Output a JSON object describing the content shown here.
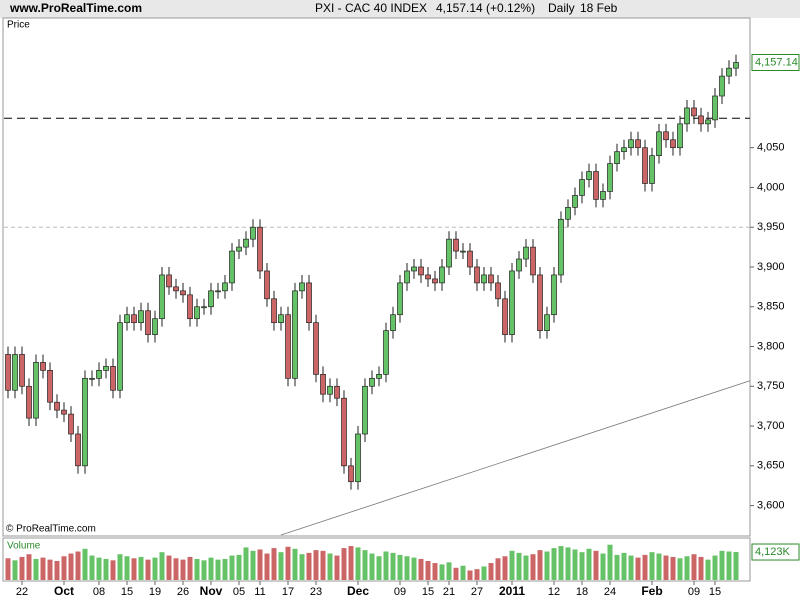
{
  "site": "www.ProRealTime.com",
  "copyright": "© ProRealTime.com",
  "chart_data": {
    "type": "candlestick",
    "title": "PXI - CAC 40 INDEX",
    "last_price_text": "4,157.14 (+0.12%)",
    "period": "Daily",
    "date": "18 Feb",
    "price_panel_label": "Price",
    "volume_panel_label": "Volume",
    "ylim": [
      3563,
      4198
    ],
    "yticks": [
      {
        "value": 3600,
        "label": "3,600"
      },
      {
        "value": 3650,
        "label": "3,650"
      },
      {
        "value": 3700,
        "label": "3,700"
      },
      {
        "value": 3750,
        "label": "3,750"
      },
      {
        "value": 3800,
        "label": "3,800"
      },
      {
        "value": 3850,
        "label": "3,850"
      },
      {
        "value": 3900,
        "label": "3,900"
      },
      {
        "value": 3950,
        "label": "3,950"
      },
      {
        "value": 4000,
        "label": "4,000"
      },
      {
        "value": 4050,
        "label": "4,050"
      }
    ],
    "last_price": {
      "value": 4157.14,
      "label": "4,157.14"
    },
    "hlines": [
      4087,
      3950
    ],
    "trendline": {
      "x": [
        39,
        106
      ],
      "y": [
        3563,
        3757
      ]
    },
    "up_color": "#66c266",
    "down_color": "#cc6666",
    "categories": [
      null,
      null,
      "22",
      null,
      null,
      null,
      null,
      null,
      "Oct",
      null,
      null,
      null,
      null,
      "08",
      null,
      null,
      null,
      "15",
      null,
      null,
      null,
      "19",
      null,
      null,
      null,
      "26",
      null,
      null,
      null,
      "Nov",
      null,
      null,
      null,
      "05",
      null,
      null,
      "11",
      null,
      null,
      null,
      "17",
      null,
      null,
      null,
      "23",
      null,
      null,
      null,
      null,
      null,
      "Dec",
      null,
      null,
      null,
      null,
      null,
      "09",
      null,
      null,
      null,
      "15",
      null,
      null,
      "21",
      null,
      null,
      null,
      "27",
      null,
      null,
      null,
      null,
      "2011",
      null,
      null,
      null,
      null,
      null,
      "12",
      null,
      null,
      null,
      "18",
      null,
      null,
      null,
      "24",
      null,
      null,
      null,
      null,
      null,
      "Feb",
      null,
      null,
      null,
      null,
      null,
      "09",
      null,
      null,
      "15",
      null,
      null,
      null
    ],
    "open": [
      3790,
      3745,
      3790,
      3750,
      3710,
      3780,
      3770,
      3730,
      3720,
      3715,
      3690,
      3650,
      3760,
      3760,
      3770,
      3775,
      3745,
      3830,
      3840,
      3830,
      3845,
      3815,
      3835,
      3890,
      3875,
      3870,
      3865,
      3835,
      3850,
      3850,
      3870,
      3870,
      3880,
      3920,
      3925,
      3935,
      3950,
      3895,
      3860,
      3830,
      3840,
      3760,
      3870,
      3880,
      3830,
      3765,
      3740,
      3750,
      3735,
      3650,
      3630,
      3690,
      3750,
      3760,
      3765,
      3820,
      3840,
      3880,
      3895,
      3900,
      3890,
      3885,
      3880,
      3900,
      3935,
      3920,
      3920,
      3900,
      3880,
      3890,
      3880,
      3860,
      3815,
      3895,
      3910,
      3925,
      3890,
      3820,
      3840,
      3890,
      3960,
      3975,
      3990,
      4010,
      4020,
      3985,
      3995,
      4030,
      4045,
      4050,
      4060,
      4050,
      4005,
      4040,
      4070,
      4060,
      4050,
      4080,
      4100,
      4090,
      4080,
      4085,
      4115,
      4140,
      4150
    ],
    "high": [
      3800,
      3800,
      3800,
      3760,
      3790,
      3790,
      3780,
      3740,
      3730,
      3725,
      3700,
      3770,
      3770,
      3780,
      3785,
      3785,
      3840,
      3850,
      3850,
      3855,
      3855,
      3845,
      3900,
      3900,
      3885,
      3880,
      3875,
      3860,
      3860,
      3880,
      3880,
      3890,
      3930,
      3935,
      3945,
      3960,
      3960,
      3905,
      3870,
      3850,
      3850,
      3880,
      3890,
      3890,
      3840,
      3775,
      3760,
      3760,
      3745,
      3660,
      3700,
      3760,
      3770,
      3775,
      3830,
      3850,
      3890,
      3905,
      3910,
      3910,
      3900,
      3895,
      3910,
      3945,
      3945,
      3930,
      3930,
      3910,
      3900,
      3900,
      3890,
      3870,
      3905,
      3920,
      3935,
      3935,
      3900,
      3850,
      3900,
      3970,
      3985,
      4000,
      4020,
      4030,
      4030,
      4005,
      4040,
      4055,
      4060,
      4070,
      4070,
      4060,
      4050,
      4080,
      4080,
      4070,
      4090,
      4110,
      4110,
      4100,
      4095,
      4125,
      4150,
      4160,
      4167
    ],
    "low": [
      3735,
      3735,
      3740,
      3700,
      3700,
      3760,
      3720,
      3710,
      3705,
      3680,
      3640,
      3640,
      3750,
      3750,
      3760,
      3735,
      3735,
      3820,
      3820,
      3820,
      3805,
      3805,
      3825,
      3865,
      3860,
      3855,
      3825,
      3825,
      3840,
      3840,
      3860,
      3860,
      3870,
      3910,
      3915,
      3925,
      3885,
      3850,
      3820,
      3820,
      3750,
      3750,
      3860,
      3820,
      3755,
      3730,
      3730,
      3725,
      3640,
      3620,
      3620,
      3680,
      3740,
      3750,
      3755,
      3810,
      3830,
      3870,
      3885,
      3880,
      3875,
      3870,
      3870,
      3890,
      3910,
      3910,
      3890,
      3870,
      3870,
      3870,
      3850,
      3805,
      3805,
      3885,
      3900,
      3880,
      3810,
      3810,
      3830,
      3880,
      3950,
      3965,
      3980,
      4000,
      3975,
      3975,
      3985,
      4020,
      4035,
      4040,
      4040,
      3995,
      3995,
      4030,
      4050,
      4040,
      4040,
      4070,
      4080,
      4070,
      4070,
      4075,
      4105,
      4130,
      4140
    ],
    "close": [
      3745,
      3790,
      3750,
      3710,
      3780,
      3770,
      3730,
      3720,
      3715,
      3690,
      3650,
      3760,
      3760,
      3770,
      3775,
      3745,
      3830,
      3840,
      3830,
      3845,
      3815,
      3835,
      3890,
      3875,
      3870,
      3865,
      3835,
      3850,
      3850,
      3870,
      3870,
      3880,
      3920,
      3925,
      3935,
      3950,
      3895,
      3860,
      3830,
      3840,
      3760,
      3870,
      3880,
      3830,
      3765,
      3740,
      3750,
      3735,
      3650,
      3630,
      3690,
      3750,
      3760,
      3765,
      3820,
      3840,
      3880,
      3895,
      3900,
      3890,
      3885,
      3880,
      3900,
      3935,
      3920,
      3920,
      3900,
      3880,
      3890,
      3880,
      3860,
      3815,
      3895,
      3910,
      3925,
      3890,
      3820,
      3840,
      3890,
      3960,
      3975,
      3990,
      4010,
      4020,
      3985,
      3995,
      4030,
      4045,
      4050,
      4060,
      4050,
      4005,
      4040,
      4070,
      4060,
      4050,
      4080,
      4100,
      4090,
      4080,
      4085,
      4115,
      4140,
      4150,
      4157.14
    ],
    "volume": [
      3200,
      2900,
      3400,
      3800,
      3100,
      3300,
      3000,
      2800,
      3500,
      3900,
      4200,
      4600,
      3600,
      3300,
      3100,
      2900,
      3800,
      3500,
      3200,
      3400,
      3000,
      3300,
      4100,
      3600,
      3200,
      3000,
      3400,
      3100,
      2900,
      3300,
      3000,
      3100,
      3600,
      3700,
      4800,
      4300,
      4500,
      3900,
      4700,
      4100,
      4900,
      4600,
      3800,
      4000,
      4400,
      4300,
      3900,
      3600,
      4700,
      5000,
      4800,
      4400,
      3900,
      3500,
      4200,
      4000,
      3700,
      3500,
      3300,
      3100,
      2800,
      2500,
      2300,
      2600,
      1800,
      2100,
      1400,
      1600,
      2000,
      2500,
      3200,
      3500,
      4300,
      4000,
      3600,
      3800,
      4400,
      4200,
      4700,
      5000,
      4800,
      4500,
      4100,
      4600,
      4300,
      3900,
      5200,
      3700,
      4000,
      3600,
      3300,
      3700,
      4100,
      3900,
      3600,
      3400,
      3200,
      3500,
      3800,
      3400,
      3000,
      3600,
      4300,
      4200,
      4123
    ],
    "vlim": [
      0,
      5600
    ],
    "last_volume": {
      "value": 4123,
      "label": "4,123K"
    }
  }
}
